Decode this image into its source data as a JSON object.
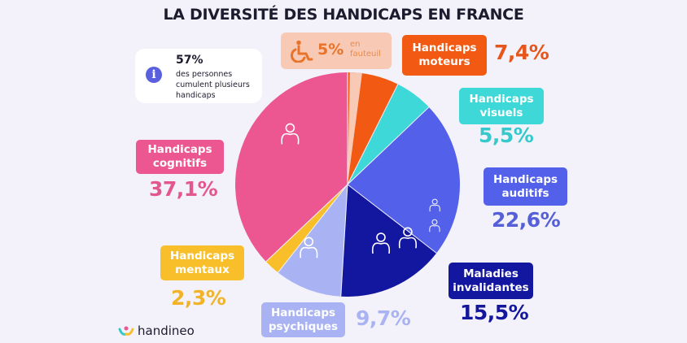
{
  "title": "LA DIVERSITÉ DES HANDICAPS EN FRANCE",
  "info": {
    "icon": "info-icon",
    "value": "57%",
    "text": "des personnes cumulent plusieurs handicaps"
  },
  "fauteuil": {
    "icon": "wheelchair-icon",
    "value": "5%",
    "text": "en fauteuil",
    "color": "#f8cab6"
  },
  "logo": "handineo",
  "chart_data": {
    "type": "pie",
    "title": "LA DIVERSITÉ DES HANDICAPS EN FRANCE",
    "start": "top",
    "direction": "clockwise",
    "slices": [
      {
        "label_line1": "Handicaps",
        "label_line2": "moteurs",
        "value": 7.4,
        "display": "7,4%",
        "color": "#f25a14",
        "text_color": "#e8551a",
        "icon": "person-volleyball-icon"
      },
      {
        "label_line1": "Handicaps",
        "label_line2": "visuels",
        "value": 5.5,
        "display": "5,5%",
        "color": "#3ed8d8",
        "text_color": "#35c9cc",
        "icon": "eye-crossed-icon"
      },
      {
        "label_line1": "Handicaps",
        "label_line2": "auditifs",
        "value": 22.6,
        "display": "22,6%",
        "color": "#5260ea",
        "text_color": "#5560d8",
        "icon": "ear-icon"
      },
      {
        "label_line1": "Maladies",
        "label_line2": "invalidantes",
        "value": 15.5,
        "display": "15,5%",
        "color": "#13169e",
        "text_color": "#14169c",
        "icon": "back-pain-icon"
      },
      {
        "label_line1": "Handicaps",
        "label_line2": "psychiques",
        "value": 9.7,
        "display": "9,7%",
        "color": "#a9b3f3",
        "text_color": "#a9b3f3",
        "icon": "head-profile-icon"
      },
      {
        "label_line1": "Handicaps",
        "label_line2": "mentaux",
        "value": 2.3,
        "display": "2,3%",
        "color": "#f9bf2a",
        "text_color": "#f0b32a",
        "icon": ""
      },
      {
        "label_line1": "Handicaps",
        "label_line2": "cognitifs",
        "value": 37.1,
        "display": "37,1%",
        "color": "#ec5791",
        "text_color": "#e3578f",
        "icon": "head-puzzle-icon"
      }
    ]
  }
}
